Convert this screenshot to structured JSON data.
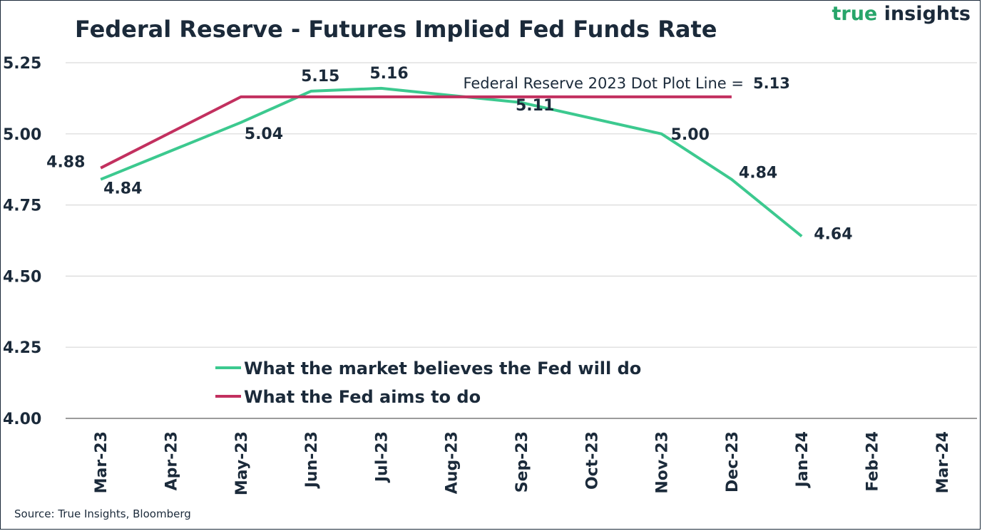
{
  "header": {
    "title": "Federal Reserve - Futures Implied Fed Funds Rate",
    "brand_part1": "true",
    "brand_part2": "insights"
  },
  "footer": {
    "source": "Source: True Insights, Bloomberg"
  },
  "colors": {
    "market": "#3cc98f",
    "fed": "#c2305f",
    "grid": "#d9d9d9",
    "axis": "#7a7a7a",
    "text": "#1b2a3a"
  },
  "chart_data": {
    "type": "line",
    "title": "Federal Reserve - Futures Implied Fed Funds Rate",
    "categories": [
      "Mar-23",
      "Apr-23",
      "May-23",
      "Jun-23",
      "Jul-23",
      "Aug-23",
      "Sep-23",
      "Oct-23",
      "Nov-23",
      "Dec-23",
      "Jan-24",
      "Feb-24",
      "Mar-24"
    ],
    "ylim": [
      4.0,
      5.25
    ],
    "yticks": [
      "4.00",
      "4.25",
      "4.50",
      "4.75",
      "5.00",
      "5.25"
    ],
    "grid": true,
    "legend_position": "bottom-left",
    "series": [
      {
        "name": "What the market believes the Fed will do",
        "color": "#3cc98f",
        "values": [
          4.84,
          null,
          5.04,
          5.15,
          5.16,
          null,
          5.11,
          null,
          5.0,
          4.84,
          4.64,
          null,
          null
        ],
        "labels": [
          "4.84",
          null,
          "5.04",
          "5.15",
          "5.16",
          null,
          "5.11",
          null,
          "5.00",
          "4.84",
          "4.64",
          null,
          null
        ]
      },
      {
        "name": "What the Fed aims to do",
        "color": "#c2305f",
        "values": [
          4.88,
          null,
          5.13,
          null,
          null,
          null,
          null,
          null,
          null,
          5.13,
          null,
          null,
          null
        ],
        "labels": [
          "4.88",
          null,
          null,
          null,
          null,
          null,
          null,
          null,
          null,
          null,
          null,
          null,
          null
        ]
      }
    ],
    "annotation": {
      "text": "Federal Reserve 2023 Dot Plot Line =",
      "value": "5.13"
    }
  }
}
